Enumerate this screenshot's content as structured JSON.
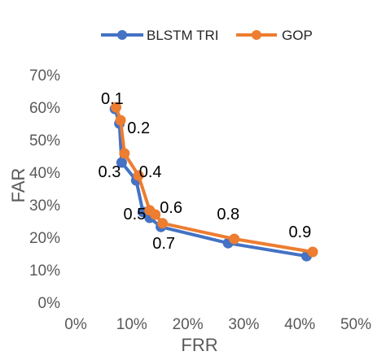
{
  "chart_data": {
    "type": "line",
    "xlabel": "FRR",
    "ylabel": "FAR",
    "xlim": [
      0,
      0.5
    ],
    "ylim": [
      0,
      0.7
    ],
    "xticks": [
      0,
      0.1,
      0.2,
      0.3,
      0.4,
      0.5
    ],
    "yticks": [
      0,
      0.1,
      0.2,
      0.3,
      0.4,
      0.5,
      0.6,
      0.7
    ],
    "xtick_labels": [
      "0%",
      "10%",
      "20%",
      "30%",
      "40%",
      "50%"
    ],
    "ytick_labels": [
      "0%",
      "10%",
      "20%",
      "30%",
      "40%",
      "50%",
      "60%",
      "70%"
    ],
    "grid": false,
    "legend_position": "top-center",
    "series": [
      {
        "name": "BLSTM TRI",
        "color": "#4472C4",
        "x": [
          0.07,
          0.078,
          0.082,
          0.108,
          0.12,
          0.132,
          0.152,
          0.272,
          0.412
        ],
        "y": [
          0.595,
          0.55,
          0.43,
          0.375,
          0.278,
          0.26,
          0.232,
          0.182,
          0.142
        ]
      },
      {
        "name": "GOP",
        "color": "#ED7D31",
        "x": [
          0.072,
          0.08,
          0.087,
          0.112,
          0.132,
          0.142,
          0.155,
          0.283,
          0.423
        ],
        "y": [
          0.6,
          0.56,
          0.458,
          0.39,
          0.283,
          0.27,
          0.243,
          0.195,
          0.155
        ]
      }
    ],
    "annotations": [
      {
        "text": "0.1",
        "x": 0.045,
        "y": 0.61
      },
      {
        "text": "0.2",
        "x": 0.092,
        "y": 0.52
      },
      {
        "text": "0.3",
        "x": 0.04,
        "y": 0.385
      },
      {
        "text": "0.4",
        "x": 0.113,
        "y": 0.385
      },
      {
        "text": "0.5",
        "x": 0.085,
        "y": 0.255
      },
      {
        "text": "0.6",
        "x": 0.15,
        "y": 0.275
      },
      {
        "text": "0.7",
        "x": 0.137,
        "y": 0.165
      },
      {
        "text": "0.8",
        "x": 0.252,
        "y": 0.255
      },
      {
        "text": "0.9",
        "x": 0.38,
        "y": 0.2
      }
    ]
  }
}
